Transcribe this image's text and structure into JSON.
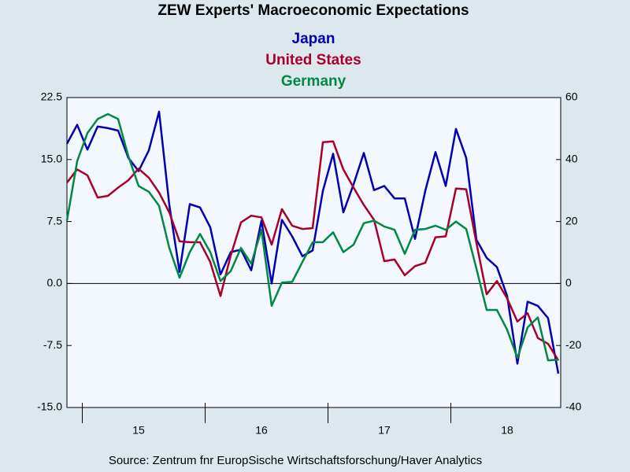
{
  "chart_data": {
    "type": "line",
    "title": "ZEW Experts' Macroeconomic Expectations",
    "source": "Source:  Zentrum fnr EuropSische Wirtschaftsforschung/Haver Analytics",
    "categories": [
      null,
      null,
      null,
      null,
      null,
      null,
      null,
      "15",
      null,
      null,
      null,
      null,
      null,
      null,
      null,
      null,
      null,
      null,
      null,
      "16",
      null,
      null,
      null,
      null,
      null,
      null,
      null,
      null,
      null,
      null,
      null,
      "17",
      null,
      null,
      null,
      null,
      null,
      null,
      null,
      null,
      null,
      null,
      null,
      "18",
      null,
      null,
      null,
      null,
      null
    ],
    "series": [
      {
        "name": "Japan",
        "color": "#0000b0",
        "values": [
          16.9,
          19.2,
          16.2,
          19.0,
          18.8,
          18.5,
          15.2,
          13.6,
          16.1,
          20.8,
          9.5,
          1.4,
          9.6,
          9.2,
          6.8,
          1.1,
          3.8,
          4.1,
          1.6,
          7.6,
          0.0,
          7.7,
          5.7,
          3.3,
          4.0,
          11.2,
          15.7,
          8.6,
          12.0,
          15.8,
          11.3,
          11.8,
          10.3,
          10.3,
          5.4,
          11.2,
          15.9,
          11.8,
          18.7,
          15.2,
          5.3,
          3.1,
          2.0,
          -1.5,
          -9.7,
          -2.2,
          -2.7,
          -4.2,
          -10.9
        ]
      },
      {
        "name": "United States",
        "color": "#a8002a",
        "values": [
          12.2,
          13.8,
          13.1,
          10.4,
          10.6,
          11.6,
          12.5,
          13.9,
          12.8,
          11.0,
          8.6,
          5.1,
          5.0,
          5.0,
          2.6,
          -1.5,
          3.4,
          7.4,
          8.2,
          8.0,
          4.7,
          9.0,
          7.0,
          6.6,
          6.7,
          17.1,
          17.2,
          13.8,
          11.6,
          9.5,
          7.7,
          2.7,
          2.9,
          1.0,
          2.1,
          2.5,
          5.6,
          5.7,
          11.5,
          11.4,
          4.9,
          -1.3,
          0.3,
          -1.8,
          -4.6,
          -3.6,
          -6.6,
          -7.3,
          -9.3
        ]
      },
      {
        "name": "Germany",
        "color": "#008844",
        "values": [
          7.6,
          14.8,
          18.2,
          19.9,
          20.5,
          19.9,
          15.4,
          11.8,
          11.1,
          9.4,
          4.3,
          0.7,
          3.8,
          6.0,
          3.8,
          0.3,
          1.5,
          4.3,
          2.4,
          6.5,
          -2.7,
          0.1,
          0.2,
          2.6,
          5.0,
          5.0,
          6.2,
          3.8,
          4.7,
          7.3,
          7.6,
          6.9,
          6.5,
          3.6,
          6.5,
          6.6,
          7.0,
          6.5,
          7.5,
          6.6,
          1.8,
          -3.2,
          -3.2,
          -5.6,
          -9.0,
          -5.3,
          -4.1,
          -9.3,
          -9.2
        ]
      }
    ],
    "ylim": [
      -15,
      22.5
    ],
    "yticks": [
      {
        "value": -15,
        "label": "-15.0"
      },
      -7.5,
      {
        "value": 0,
        "label": "0.0"
      },
      7.5,
      {
        "value": 15,
        "label": "15.0"
      },
      22.5
    ],
    "y2lim": [
      -40,
      60
    ],
    "y2ticks": [
      -40,
      -20,
      0,
      20,
      40,
      60
    ],
    "zero_line": true
  }
}
